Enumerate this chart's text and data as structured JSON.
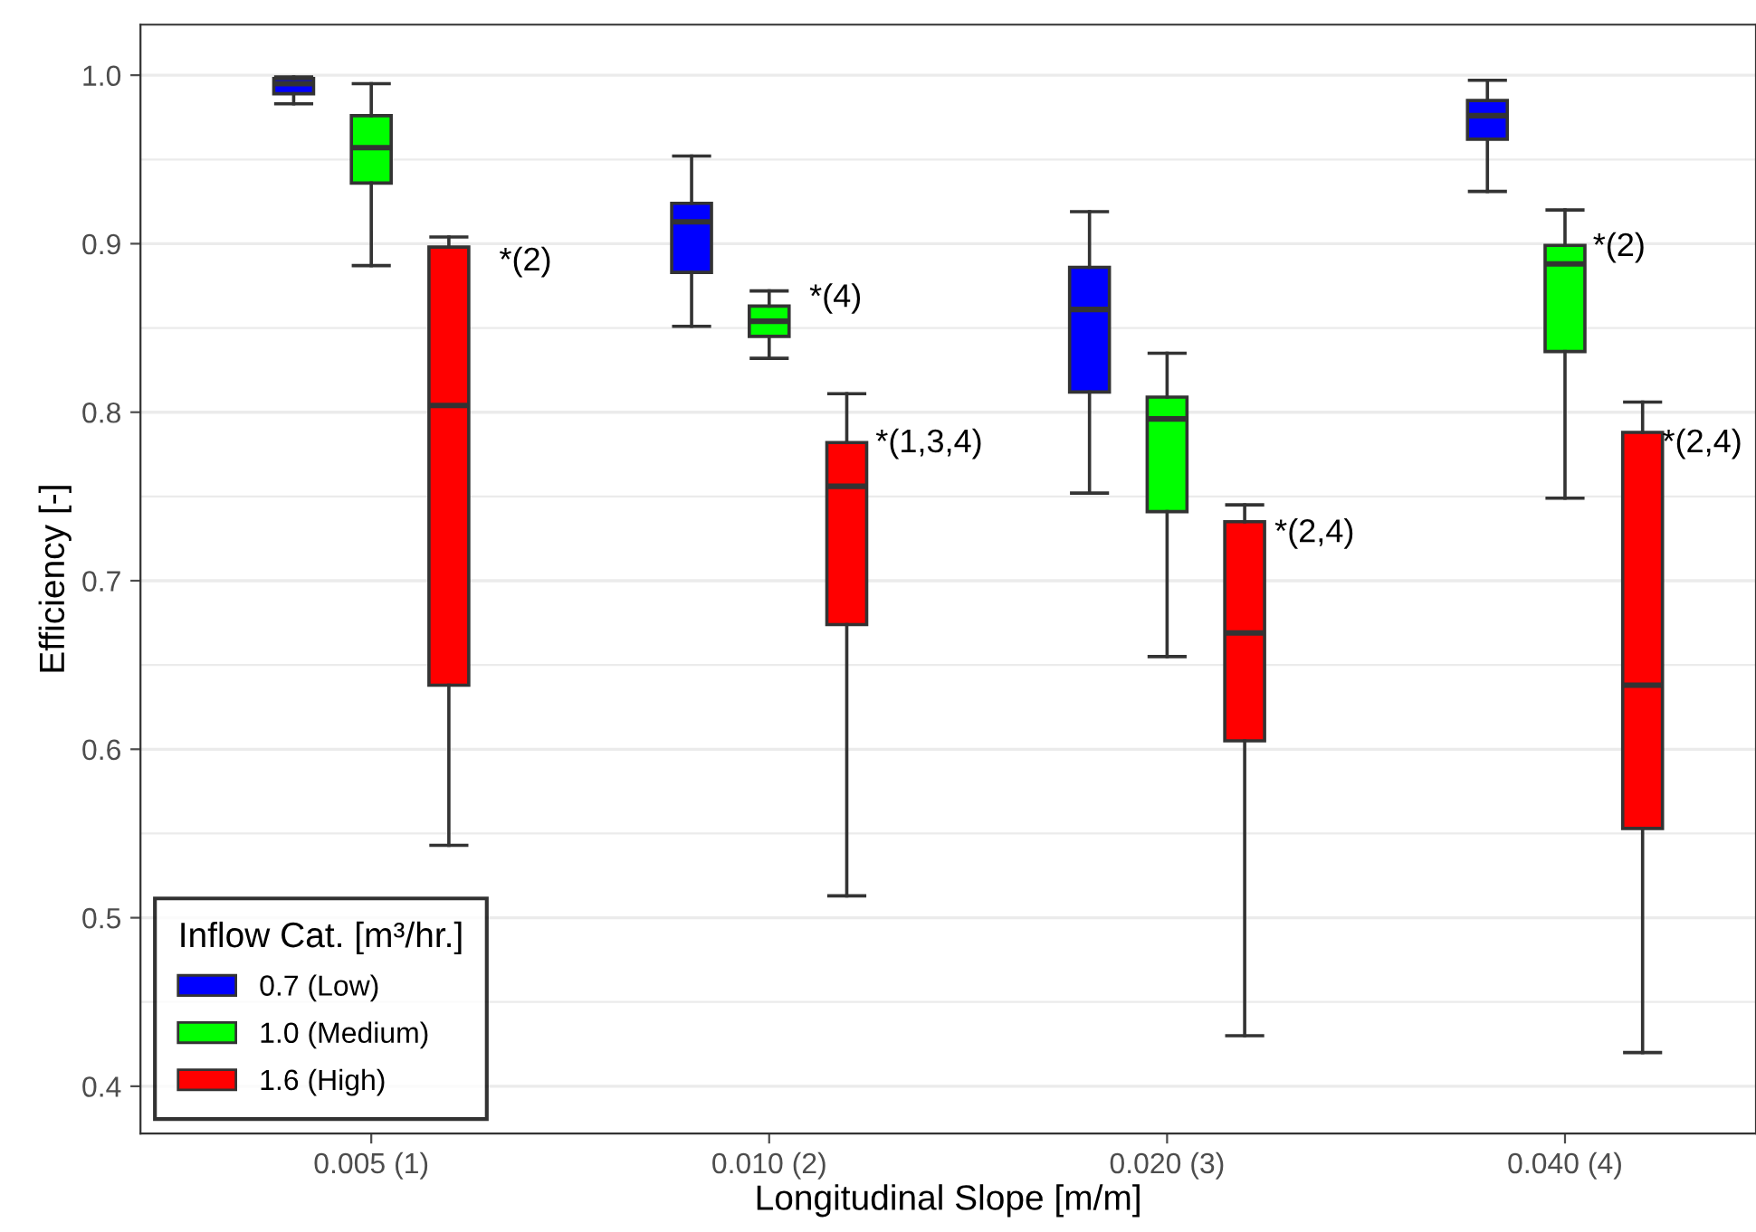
{
  "chart_data": {
    "type": "box",
    "xlabel": "Longitudinal Slope [m/m]",
    "ylabel": "Efficiency [-]",
    "legend_title": "Inflow Cat. [m³/hr.]",
    "categories": [
      "0.005 (1)",
      "0.010 (2)",
      "0.020 (3)",
      "0.040 (4)"
    ],
    "series": [
      {
        "name": "0.7 (Low)",
        "color": "#0000ff",
        "boxes": [
          {
            "low": 0.983,
            "q1": 0.989,
            "median": 0.995,
            "q3": 0.998,
            "high": 0.999
          },
          {
            "low": 0.851,
            "q1": 0.883,
            "median": 0.913,
            "q3": 0.924,
            "high": 0.952
          },
          {
            "low": 0.752,
            "q1": 0.812,
            "median": 0.861,
            "q3": 0.886,
            "high": 0.919
          },
          {
            "low": 0.931,
            "q1": 0.962,
            "median": 0.976,
            "q3": 0.985,
            "high": 0.997
          }
        ]
      },
      {
        "name": "1.0 (Medium)",
        "color": "#00ff00",
        "boxes": [
          {
            "low": 0.887,
            "q1": 0.936,
            "median": 0.957,
            "q3": 0.976,
            "high": 0.995
          },
          {
            "low": 0.832,
            "q1": 0.845,
            "median": 0.854,
            "q3": 0.863,
            "high": 0.872
          },
          {
            "low": 0.655,
            "q1": 0.741,
            "median": 0.796,
            "q3": 0.809,
            "high": 0.835
          },
          {
            "low": 0.749,
            "q1": 0.836,
            "median": 0.888,
            "q3": 0.899,
            "high": 0.92
          }
        ]
      },
      {
        "name": "1.6 (High)",
        "color": "#ff0000",
        "boxes": [
          {
            "low": 0.543,
            "q1": 0.638,
            "median": 0.804,
            "q3": 0.898,
            "high": 0.904
          },
          {
            "low": 0.513,
            "q1": 0.674,
            "median": 0.756,
            "q3": 0.782,
            "high": 0.811
          },
          {
            "low": 0.43,
            "q1": 0.605,
            "median": 0.669,
            "q3": 0.735,
            "high": 0.745
          },
          {
            "low": 0.42,
            "q1": 0.553,
            "median": 0.638,
            "q3": 0.788,
            "high": 0.806
          }
        ]
      }
    ],
    "ylim": [
      0.372,
      1.03
    ],
    "yticks": [
      0.4,
      0.5,
      0.6,
      0.7,
      0.8,
      0.9,
      {
        "value": 1.0,
        "label": "1.0"
      }
    ],
    "grid": "y",
    "legend": "bottom left",
    "annotations": [
      "*(2)",
      "*(4)",
      "*(1,3,4)",
      "*(2,4)",
      "*(2)",
      "*(2,4)"
    ]
  }
}
